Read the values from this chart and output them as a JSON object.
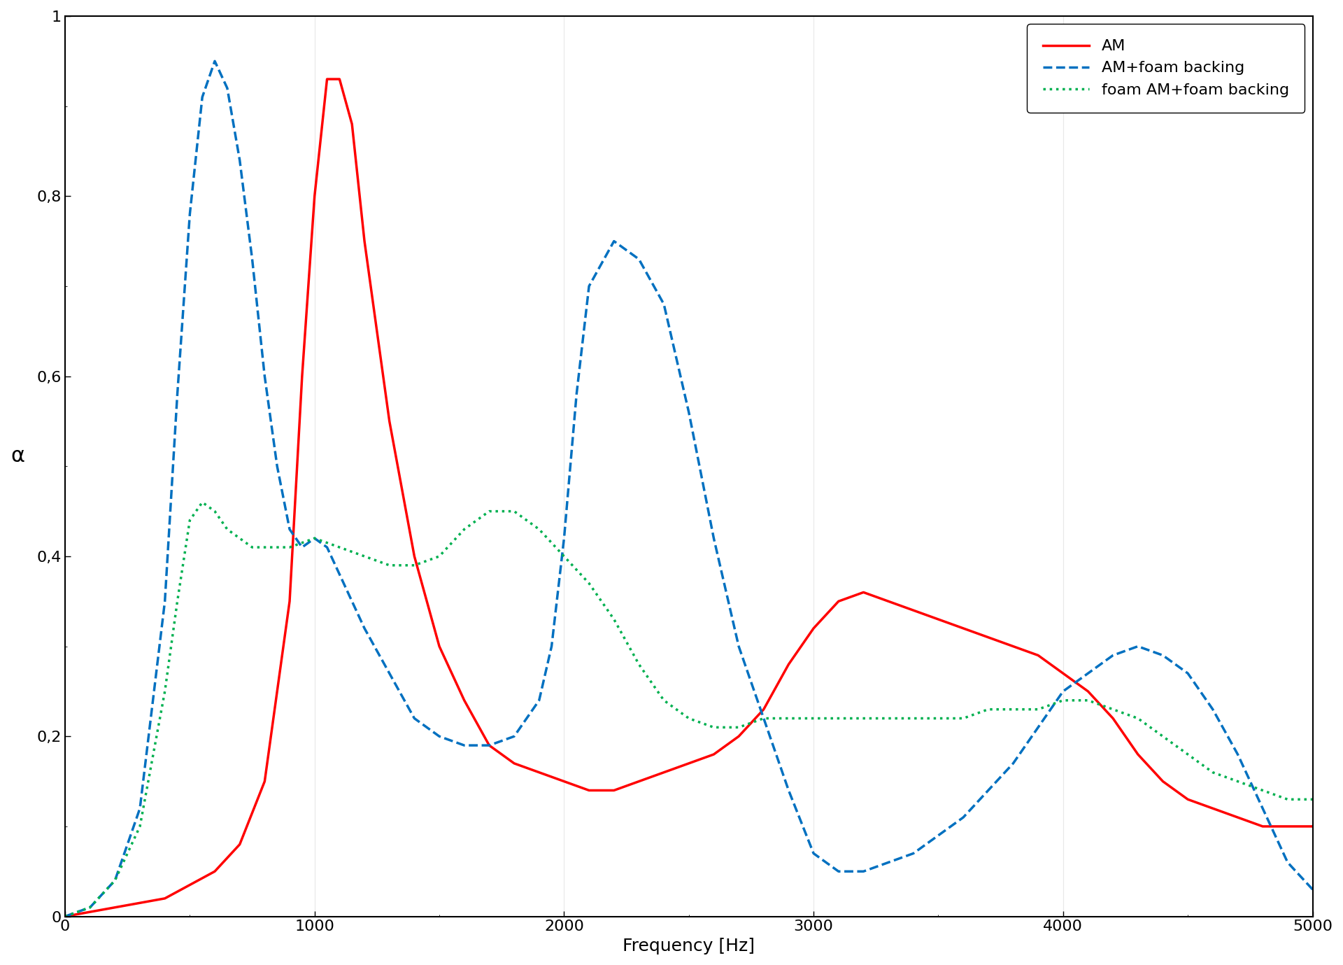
{
  "title": "",
  "xlabel": "Frequency [Hz]",
  "ylabel": "α",
  "xlim": [
    0,
    5000
  ],
  "ylim": [
    0,
    1.0
  ],
  "xticks": [
    0,
    1000,
    2000,
    3000,
    4000,
    5000
  ],
  "yticks": [
    0,
    0.2,
    0.4,
    0.6,
    0.8,
    1
  ],
  "ytick_labels": [
    "0",
    "0,2",
    "0,4",
    "0,6",
    "0,8",
    "1"
  ],
  "background_color": "#ffffff",
  "series": [
    {
      "label": "AM",
      "color": "#ff0000",
      "linestyle": "solid",
      "linewidth": 2.5,
      "x": [
        0,
        200,
        400,
        600,
        700,
        800,
        900,
        950,
        1000,
        1050,
        1100,
        1150,
        1200,
        1300,
        1400,
        1500,
        1600,
        1700,
        1800,
        1900,
        2000,
        2100,
        2200,
        2300,
        2400,
        2500,
        2600,
        2700,
        2800,
        2900,
        3000,
        3100,
        3200,
        3300,
        3400,
        3500,
        3600,
        3700,
        3800,
        3900,
        4000,
        4100,
        4200,
        4300,
        4400,
        4500,
        4600,
        4700,
        4800,
        4900,
        5000
      ],
      "y": [
        0.0,
        0.01,
        0.02,
        0.05,
        0.08,
        0.15,
        0.35,
        0.6,
        0.8,
        0.93,
        0.93,
        0.88,
        0.75,
        0.55,
        0.4,
        0.3,
        0.24,
        0.19,
        0.17,
        0.16,
        0.15,
        0.14,
        0.14,
        0.15,
        0.16,
        0.17,
        0.18,
        0.2,
        0.23,
        0.28,
        0.32,
        0.35,
        0.36,
        0.35,
        0.34,
        0.33,
        0.32,
        0.31,
        0.3,
        0.29,
        0.27,
        0.25,
        0.22,
        0.18,
        0.15,
        0.13,
        0.12,
        0.11,
        0.1,
        0.1,
        0.1
      ]
    },
    {
      "label": "AM+foam backing",
      "color": "#0070c0",
      "linestyle": "dashed",
      "linewidth": 2.5,
      "x": [
        0,
        100,
        200,
        300,
        400,
        450,
        500,
        550,
        600,
        650,
        700,
        750,
        800,
        850,
        900,
        950,
        1000,
        1050,
        1100,
        1200,
        1300,
        1400,
        1500,
        1600,
        1700,
        1800,
        1900,
        1950,
        2000,
        2050,
        2100,
        2200,
        2300,
        2400,
        2500,
        2600,
        2700,
        2800,
        2900,
        3000,
        3100,
        3200,
        3300,
        3400,
        3500,
        3600,
        3700,
        3800,
        3900,
        4000,
        4100,
        4200,
        4300,
        4400,
        4500,
        4600,
        4700,
        4800,
        4900,
        5000
      ],
      "y": [
        0.0,
        0.01,
        0.04,
        0.12,
        0.35,
        0.58,
        0.78,
        0.91,
        0.95,
        0.92,
        0.84,
        0.73,
        0.6,
        0.5,
        0.43,
        0.41,
        0.42,
        0.41,
        0.38,
        0.32,
        0.27,
        0.22,
        0.2,
        0.19,
        0.19,
        0.2,
        0.24,
        0.3,
        0.42,
        0.58,
        0.7,
        0.75,
        0.73,
        0.68,
        0.56,
        0.42,
        0.3,
        0.22,
        0.14,
        0.07,
        0.05,
        0.05,
        0.06,
        0.07,
        0.09,
        0.11,
        0.14,
        0.17,
        0.21,
        0.25,
        0.27,
        0.29,
        0.3,
        0.29,
        0.27,
        0.23,
        0.18,
        0.12,
        0.06,
        0.03
      ]
    },
    {
      "label": "foam AM+foam backing",
      "color": "#00b050",
      "linestyle": "dotted",
      "linewidth": 2.5,
      "x": [
        0,
        100,
        200,
        300,
        400,
        450,
        500,
        550,
        600,
        650,
        700,
        750,
        800,
        900,
        1000,
        1100,
        1200,
        1300,
        1400,
        1500,
        1600,
        1700,
        1800,
        1900,
        2000,
        2100,
        2200,
        2300,
        2400,
        2500,
        2600,
        2700,
        2800,
        2900,
        3000,
        3100,
        3200,
        3300,
        3400,
        3500,
        3600,
        3700,
        3800,
        3900,
        4000,
        4100,
        4200,
        4300,
        4400,
        4500,
        4600,
        4700,
        4800,
        4900,
        5000
      ],
      "y": [
        0.0,
        0.01,
        0.04,
        0.1,
        0.25,
        0.35,
        0.44,
        0.46,
        0.45,
        0.43,
        0.42,
        0.41,
        0.41,
        0.41,
        0.42,
        0.41,
        0.4,
        0.39,
        0.39,
        0.4,
        0.43,
        0.45,
        0.45,
        0.43,
        0.4,
        0.37,
        0.33,
        0.28,
        0.24,
        0.22,
        0.21,
        0.21,
        0.22,
        0.22,
        0.22,
        0.22,
        0.22,
        0.22,
        0.22,
        0.22,
        0.22,
        0.23,
        0.23,
        0.23,
        0.24,
        0.24,
        0.23,
        0.22,
        0.2,
        0.18,
        0.16,
        0.15,
        0.14,
        0.13,
        0.13
      ]
    }
  ],
  "legend_loc": "upper right",
  "legend_fontsize": 16,
  "axis_fontsize": 18,
  "tick_fontsize": 16
}
